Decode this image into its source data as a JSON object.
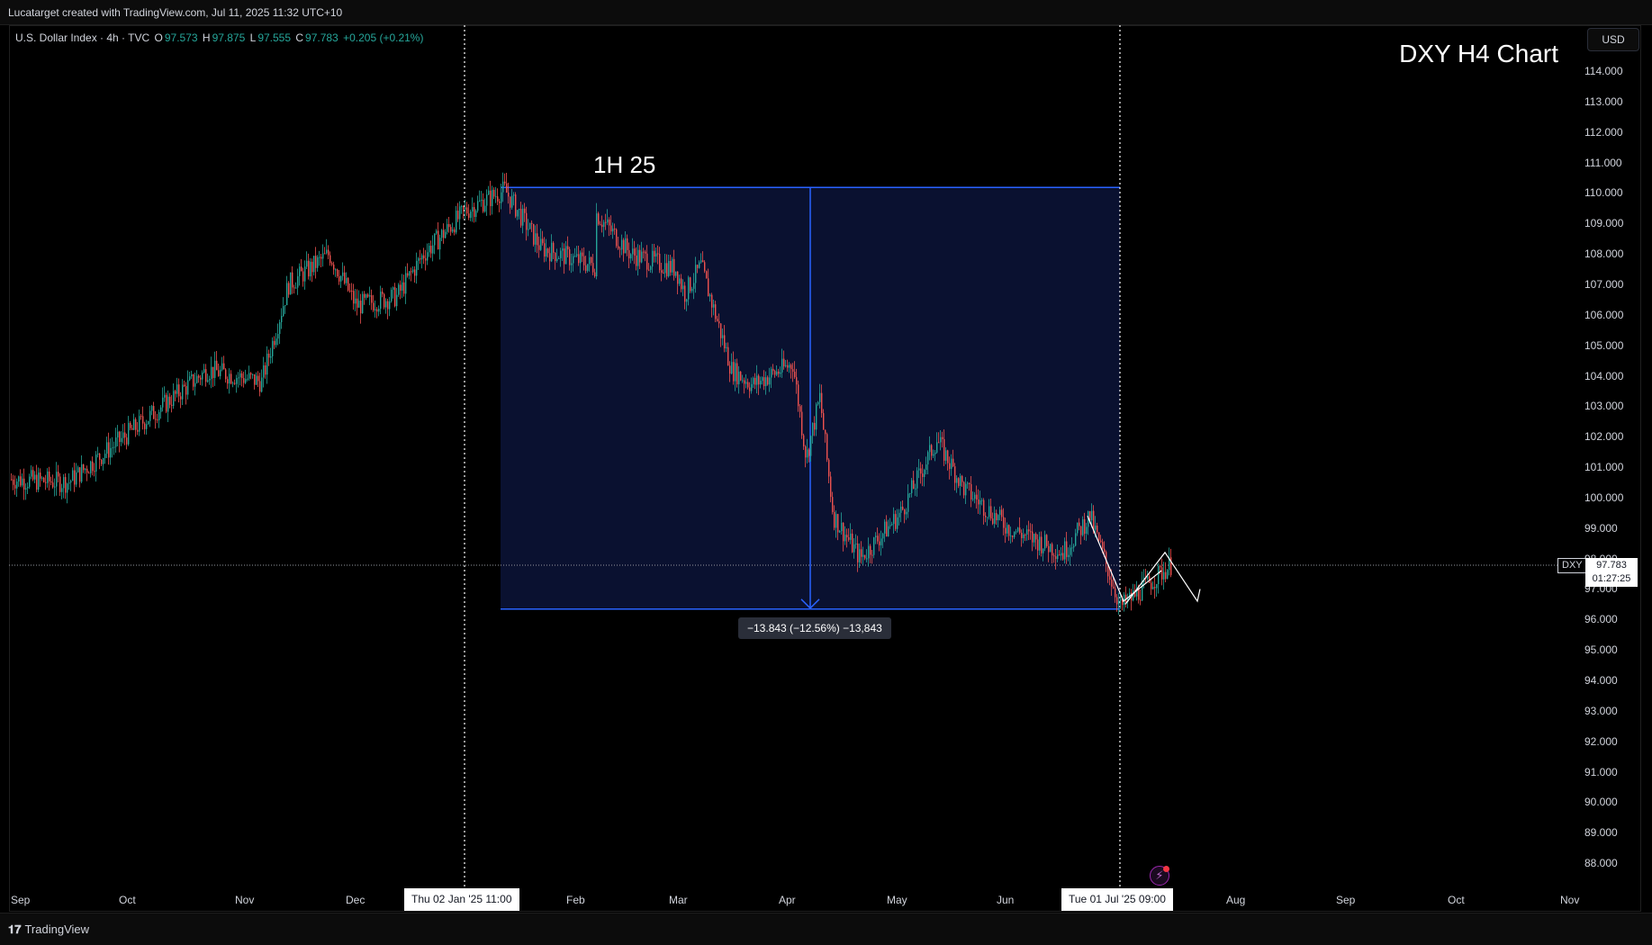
{
  "header": {
    "credit": "Lucatarget created with TradingView.com, Jul 11, 2025 11:32 UTC+10"
  },
  "legend": {
    "symbol": "U.S. Dollar Index · 4h · TVC",
    "o_label": "O",
    "o_value": "97.573",
    "h_label": "H",
    "h_value": "97.875",
    "l_label": "L",
    "l_value": "97.555",
    "c_label": "C",
    "c_value": "97.783",
    "change": "+0.205 (+0.21%)"
  },
  "chart_title": "DXY H4 Chart",
  "currency_button": "USD",
  "box_label": "1H 25",
  "range_label": "−13.843 (−12.56%) −13,843",
  "markers": {
    "start": "Thu 02 Jan '25   11:00",
    "end": "Tue 01 Jul '25   09:00"
  },
  "symbol_tag": "DXY",
  "price_tag": {
    "price": "97.783",
    "countdown": "01:27:25"
  },
  "price_axis": [
    "114.000",
    "113.000",
    "112.000",
    "111.000",
    "110.000",
    "109.000",
    "108.000",
    "107.000",
    "106.000",
    "105.000",
    "104.000",
    "103.000",
    "102.000",
    "101.000",
    "100.000",
    "99.000",
    "98.000",
    "97.000",
    "96.000",
    "95.000",
    "94.000",
    "93.000",
    "92.000",
    "91.000",
    "90.000",
    "89.000",
    "88.000"
  ],
  "time_axis": [
    "Sep",
    "Oct",
    "Nov",
    "Dec",
    "Feb",
    "Mar",
    "Apr",
    "May",
    "Jun",
    "Aug",
    "Sep",
    "Oct",
    "Nov"
  ],
  "footer": {
    "brand": "TradingView"
  },
  "colors": {
    "up": "#26a69a",
    "down": "#ef5350",
    "box_fill": "#0a1130",
    "box_line": "#2962ff",
    "background": "#000000"
  },
  "chart_data": {
    "type": "candlestick",
    "symbol": "DXY",
    "timeframe": "4h",
    "y_range": [
      87.5,
      114.5
    ],
    "last_price": 97.783,
    "open": 97.573,
    "high": 97.875,
    "low": 97.555,
    "close": 97.783,
    "range_box": {
      "top": 110.18,
      "bottom": 96.34,
      "change": -13.843,
      "change_pct": -12.56
    },
    "path_points": [
      [
        "Sep",
        100.6
      ],
      [
        "Oct",
        100.5
      ],
      [
        "Oct",
        102.3
      ],
      [
        "Nov",
        104.2
      ],
      [
        "Nov",
        103.8
      ],
      [
        "Nov",
        107.0
      ],
      [
        "Nov",
        108.0
      ],
      [
        "Nov",
        106.3
      ],
      [
        "Dec",
        106.6
      ],
      [
        "Dec",
        108.0
      ],
      [
        "Thu 02 Jan '25",
        109.4
      ],
      [
        "Jan",
        110.1
      ],
      [
        "Jan",
        108.2
      ],
      [
        "Jan",
        107.6
      ],
      [
        "Feb",
        109.9
      ],
      [
        "Feb",
        108.0
      ],
      [
        "Mar",
        107.5
      ],
      [
        "Mar",
        106.7
      ],
      [
        "Mar",
        107.6
      ],
      [
        "Mar",
        104.2
      ],
      [
        "Mar",
        103.7
      ],
      [
        "Apr",
        104.4
      ],
      [
        "Apr",
        101.3
      ],
      [
        "Apr",
        103.3
      ],
      [
        "Apr",
        99.4
      ],
      [
        "Apr",
        98.0
      ],
      [
        "May",
        99.5
      ],
      [
        "May",
        101.9
      ],
      [
        "May",
        100.3
      ],
      [
        "Jun",
        99.0
      ],
      [
        "Jun",
        98.2
      ],
      [
        "Jun",
        99.4
      ],
      [
        "Tue 01 Jul '25",
        96.4
      ],
      [
        "Jul",
        97.8
      ]
    ],
    "projection": [
      [
        97.8
      ],
      [
        98.0
      ],
      [
        96.7
      ]
    ]
  }
}
